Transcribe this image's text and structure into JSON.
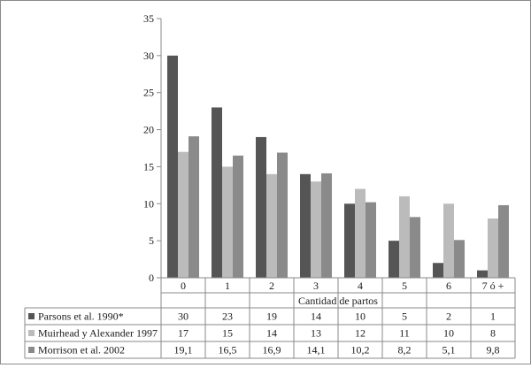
{
  "chart_data": {
    "type": "bar",
    "xlabel": "Cantidad de partos",
    "ylabel": "",
    "ylim": [
      0,
      35
    ],
    "yticks": [
      0,
      5,
      10,
      15,
      20,
      25,
      30,
      35
    ],
    "grid": false,
    "legend": "data-table-left",
    "categories": [
      "0",
      "1",
      "2",
      "3",
      "4",
      "5",
      "6",
      "7 ó +"
    ],
    "series": [
      {
        "name": "Parsons et al. 1990*",
        "color": "#555555",
        "values": [
          30,
          23,
          19,
          14,
          10,
          5,
          2,
          1
        ],
        "table_values": [
          "30",
          "23",
          "19",
          "14",
          "10",
          "5",
          "2",
          "1"
        ]
      },
      {
        "name": "Muirhead y Alexander 1997",
        "color": "#bbbbbb",
        "values": [
          17,
          15,
          14,
          13,
          12,
          11,
          10,
          8
        ],
        "table_values": [
          "17",
          "15",
          "14",
          "13",
          "12",
          "11",
          "10",
          "8"
        ]
      },
      {
        "name": "Morrison et al. 2002",
        "color": "#8a8a8a",
        "values": [
          19.1,
          16.5,
          16.9,
          14.1,
          10.2,
          8.2,
          5.1,
          9.8
        ],
        "table_values": [
          "19,1",
          "16,5",
          "16,9",
          "14,1",
          "10,2",
          "8,2",
          "5,1",
          "9,8"
        ]
      }
    ]
  }
}
